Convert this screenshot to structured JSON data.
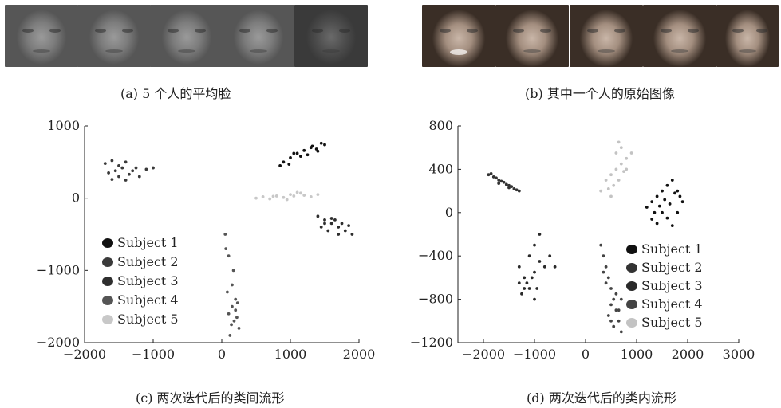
{
  "panels": {
    "a": {
      "caption": "(a) 5 个人的平均脸",
      "tones": [
        "#8d8d8d",
        "#8a8a8a",
        "#7f7f7f",
        "#9a9a9a",
        "#4e4e4e"
      ]
    },
    "b": {
      "caption": "(b)  其中一个人的原始图像",
      "expressions": [
        "smile",
        "neutral",
        "neutral",
        "neutral",
        "neutral"
      ]
    },
    "c": {
      "caption": "(c)  两次迭代后的类间流形"
    },
    "d": {
      "caption": "(d)  两次迭代后的类内流形"
    }
  },
  "chart_data": [
    {
      "type": "scatter",
      "title": "",
      "xlabel": "",
      "ylabel": "",
      "xlim": [
        -2000,
        2000
      ],
      "ylim": [
        -2000,
        1000
      ],
      "xticks": [
        "−2000",
        "−1000",
        "0",
        "1000",
        "2000"
      ],
      "yticks": [
        "1000",
        "0",
        "−1000",
        "−2000"
      ],
      "xtick_values": [
        -2000,
        -1000,
        0,
        1000,
        2000
      ],
      "ytick_values": [
        1000,
        0,
        -1000,
        -2000
      ],
      "legend_position": "left",
      "series": [
        {
          "name": "Subject 1",
          "color": "#111111",
          "points": [
            [
              900,
              500
            ],
            [
              1000,
              560
            ],
            [
              1100,
              620
            ],
            [
              1200,
              660
            ],
            [
              1300,
              700
            ],
            [
              1380,
              680
            ],
            [
              1450,
              760
            ],
            [
              1500,
              740
            ],
            [
              1150,
              580
            ],
            [
              1050,
              620
            ],
            [
              980,
              470
            ],
            [
              1250,
              600
            ],
            [
              1400,
              650
            ],
            [
              1320,
              720
            ],
            [
              850,
              450
            ]
          ]
        },
        {
          "name": "Subject 2",
          "color": "#3a3a3a",
          "points": [
            [
              -1700,
              480
            ],
            [
              -1600,
              520
            ],
            [
              -1500,
              450
            ],
            [
              -1550,
              380
            ],
            [
              -1450,
              420
            ],
            [
              -1400,
              500
            ],
            [
              -1350,
              330
            ],
            [
              -1300,
              380
            ],
            [
              -1250,
              420
            ],
            [
              -1500,
              300
            ],
            [
              -1650,
              350
            ],
            [
              -1200,
              300
            ],
            [
              -1100,
              400
            ],
            [
              -1000,
              420
            ],
            [
              -1600,
              260
            ],
            [
              -1400,
              250
            ]
          ]
        },
        {
          "name": "Subject 3",
          "color": "#2e2e2e",
          "points": [
            [
              1400,
              -250
            ],
            [
              1500,
              -300
            ],
            [
              1600,
              -350
            ],
            [
              1700,
              -400
            ],
            [
              1800,
              -450
            ],
            [
              1650,
              -300
            ],
            [
              1750,
              -350
            ],
            [
              1550,
              -450
            ],
            [
              1450,
              -400
            ],
            [
              1900,
              -500
            ],
            [
              1850,
              -380
            ],
            [
              1700,
              -500
            ],
            [
              1600,
              -280
            ],
            [
              1500,
              -350
            ]
          ]
        },
        {
          "name": "Subject 4",
          "color": "#555555",
          "points": [
            [
              50,
              -500
            ],
            [
              100,
              -800
            ],
            [
              150,
              -1200
            ],
            [
              200,
              -1400
            ],
            [
              100,
              -1600
            ],
            [
              180,
              -1700
            ],
            [
              250,
              -1800
            ],
            [
              150,
              -1500
            ],
            [
              80,
              -1300
            ],
            [
              220,
              -1650
            ],
            [
              120,
              -1900
            ],
            [
              200,
              -1550
            ],
            [
              140,
              -1750
            ],
            [
              60,
              -700
            ],
            [
              170,
              -1000
            ],
            [
              230,
              -1450
            ]
          ]
        },
        {
          "name": "Subject 5",
          "color": "#c8c8c8",
          "points": [
            [
              500,
              0
            ],
            [
              600,
              20
            ],
            [
              700,
              -10
            ],
            [
              800,
              30
            ],
            [
              900,
              10
            ],
            [
              1000,
              50
            ],
            [
              1100,
              80
            ],
            [
              1200,
              40
            ],
            [
              1300,
              20
            ],
            [
              1400,
              50
            ],
            [
              1150,
              70
            ],
            [
              950,
              -20
            ],
            [
              750,
              25
            ],
            [
              1050,
              30
            ]
          ]
        }
      ]
    },
    {
      "type": "scatter",
      "title": "",
      "xlabel": "",
      "ylabel": "",
      "xlim": [
        -2500,
        3000
      ],
      "ylim": [
        -1200,
        800
      ],
      "xticks": [
        "−2000",
        "−1000",
        "0",
        "1000",
        "2000",
        "3000"
      ],
      "yticks": [
        "800",
        "400",
        "0",
        "−400",
        "−800",
        "−1200"
      ],
      "xtick_values": [
        -2000,
        -1000,
        0,
        1000,
        2000,
        3000
      ],
      "ytick_values": [
        800,
        400,
        0,
        -400,
        -800,
        -1200
      ],
      "legend_position": "right",
      "series": [
        {
          "name": "Subject 1",
          "color": "#111111",
          "points": [
            [
              1300,
              100
            ],
            [
              1400,
              150
            ],
            [
              1500,
              200
            ],
            [
              1600,
              250
            ],
            [
              1700,
              300
            ],
            [
              1800,
              200
            ],
            [
              1900,
              100
            ],
            [
              1500,
              0
            ],
            [
              1400,
              -100
            ],
            [
              1600,
              -50
            ],
            [
              1700,
              -120
            ],
            [
              1800,
              0
            ],
            [
              1200,
              50
            ],
            [
              1300,
              -60
            ],
            [
              1550,
              120
            ],
            [
              1650,
              80
            ],
            [
              1750,
              180
            ],
            [
              1450,
              60
            ],
            [
              1850,
              150
            ],
            [
              1350,
              0
            ]
          ]
        },
        {
          "name": "Subject 2",
          "color": "#333333",
          "points": [
            [
              -1900,
              350
            ],
            [
              -1800,
              330
            ],
            [
              -1700,
              300
            ],
            [
              -1600,
              280
            ],
            [
              -1500,
              250
            ],
            [
              -1400,
              220
            ],
            [
              -1300,
              200
            ],
            [
              -1750,
              320
            ],
            [
              -1650,
              290
            ],
            [
              -1550,
              260
            ],
            [
              -1450,
              240
            ],
            [
              -1350,
              210
            ],
            [
              -1850,
              360
            ],
            [
              -1700,
              270
            ],
            [
              -1500,
              230
            ]
          ]
        },
        {
          "name": "Subject 3",
          "color": "#2a2a2a",
          "points": [
            [
              -1300,
              -500
            ],
            [
              -1200,
              -600
            ],
            [
              -1100,
              -700
            ],
            [
              -1000,
              -550
            ],
            [
              -900,
              -450
            ],
            [
              -1250,
              -750
            ],
            [
              -1150,
              -650
            ],
            [
              -1050,
              -600
            ],
            [
              -950,
              -700
            ],
            [
              -1000,
              -300
            ],
            [
              -900,
              -200
            ],
            [
              -1100,
              -400
            ],
            [
              -1200,
              -700
            ],
            [
              -1000,
              -800
            ],
            [
              -800,
              -500
            ],
            [
              -700,
              -400
            ],
            [
              -600,
              -500
            ],
            [
              -1300,
              -650
            ]
          ]
        },
        {
          "name": "Subject 4",
          "color": "#444444",
          "points": [
            [
              300,
              -300
            ],
            [
              350,
              -400
            ],
            [
              400,
              -500
            ],
            [
              450,
              -600
            ],
            [
              500,
              -700
            ],
            [
              550,
              -800
            ],
            [
              600,
              -900
            ],
            [
              650,
              -1000
            ],
            [
              700,
              -1100
            ],
            [
              500,
              -850
            ],
            [
              450,
              -950
            ],
            [
              550,
              -1050
            ],
            [
              600,
              -750
            ],
            [
              400,
              -650
            ],
            [
              350,
              -550
            ],
            [
              650,
              -900
            ],
            [
              500,
              -1000
            ],
            [
              700,
              -800
            ]
          ]
        },
        {
          "name": "Subject 5",
          "color": "#c3c3c3",
          "points": [
            [
              300,
              200
            ],
            [
              400,
              300
            ],
            [
              500,
              350
            ],
            [
              600,
              400
            ],
            [
              700,
              450
            ],
            [
              800,
              500
            ],
            [
              550,
              250
            ],
            [
              650,
              300
            ],
            [
              750,
              380
            ],
            [
              450,
              220
            ],
            [
              600,
              550
            ],
            [
              700,
              600
            ],
            [
              500,
              150
            ],
            [
              800,
              400
            ],
            [
              900,
              550
            ],
            [
              650,
              650
            ]
          ]
        }
      ]
    }
  ]
}
